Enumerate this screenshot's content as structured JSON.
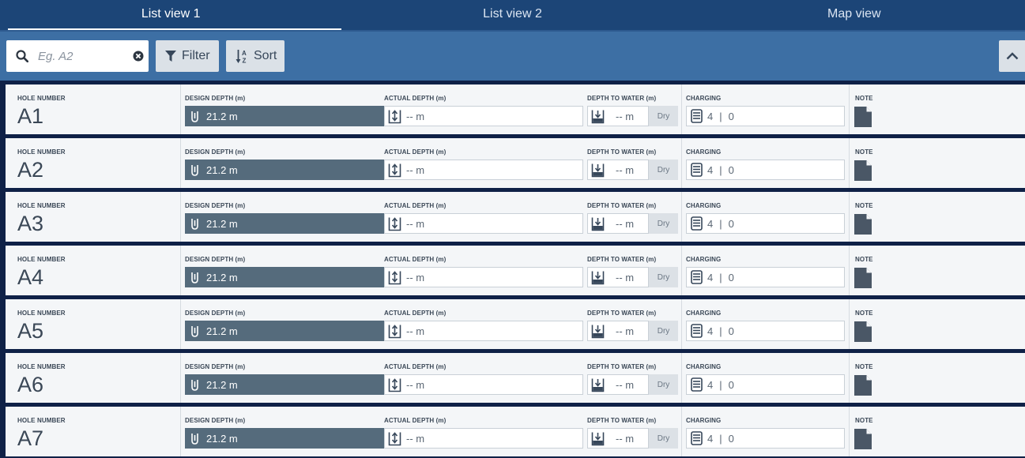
{
  "tabs": [
    {
      "label": "List view 1",
      "active": true
    },
    {
      "label": "List view 2",
      "active": false
    },
    {
      "label": "Map view",
      "active": false
    }
  ],
  "toolbar": {
    "search_placeholder": "Eg. A2",
    "search_value": "",
    "filter_label": "Filter",
    "sort_label": "Sort"
  },
  "columns": {
    "hole_number": "HOLE NUMBER",
    "design_depth": "DESIGN DEPTH (m)",
    "actual_depth": "ACTUAL DEPTH (m)",
    "depth_to_water": "DEPTH TO WATER (m)",
    "charging": "CHARGING",
    "note": "NOTE"
  },
  "dry_label": "Dry",
  "rows": [
    {
      "hole": "A1",
      "design": "21.2 m",
      "actual_value": "--",
      "actual_unit": "m",
      "water_value": "--",
      "water_unit": "m",
      "charge_a": "4",
      "charge_sep": "|",
      "charge_b": "0"
    },
    {
      "hole": "A2",
      "design": "21.2 m",
      "actual_value": "--",
      "actual_unit": "m",
      "water_value": "--",
      "water_unit": "m",
      "charge_a": "4",
      "charge_sep": "|",
      "charge_b": "0"
    },
    {
      "hole": "A3",
      "design": "21.2 m",
      "actual_value": "--",
      "actual_unit": "m",
      "water_value": "--",
      "water_unit": "m",
      "charge_a": "4",
      "charge_sep": "|",
      "charge_b": "0"
    },
    {
      "hole": "A4",
      "design": "21.2 m",
      "actual_value": "--",
      "actual_unit": "m",
      "water_value": "--",
      "water_unit": "m",
      "charge_a": "4",
      "charge_sep": "|",
      "charge_b": "0"
    },
    {
      "hole": "A5",
      "design": "21.2 m",
      "actual_value": "--",
      "actual_unit": "m",
      "water_value": "--",
      "water_unit": "m",
      "charge_a": "4",
      "charge_sep": "|",
      "charge_b": "0"
    },
    {
      "hole": "A6",
      "design": "21.2 m",
      "actual_value": "--",
      "actual_unit": "m",
      "water_value": "--",
      "water_unit": "m",
      "charge_a": "4",
      "charge_sep": "|",
      "charge_b": "0"
    },
    {
      "hole": "A7",
      "design": "21.2 m",
      "actual_value": "--",
      "actual_unit": "m",
      "water_value": "--",
      "water_unit": "m",
      "charge_a": "4",
      "charge_sep": "|",
      "charge_b": "0"
    }
  ],
  "icons": {
    "search": "search-icon",
    "clear": "clear-icon",
    "filter": "filter-icon",
    "sort": "sort-alpha-icon",
    "collapse": "chevron-up-icon",
    "design_depth": "depth-probe-icon",
    "actual_depth": "actual-depth-icon",
    "water": "water-depth-icon",
    "charging": "charging-stack-icon",
    "note": "note-file-icon"
  },
  "colors": {
    "header_bg": "#1c4577",
    "toolbar_bg": "#3d6fa4",
    "design_box": "#556b7c",
    "row_bg": "#f4f6f8"
  }
}
